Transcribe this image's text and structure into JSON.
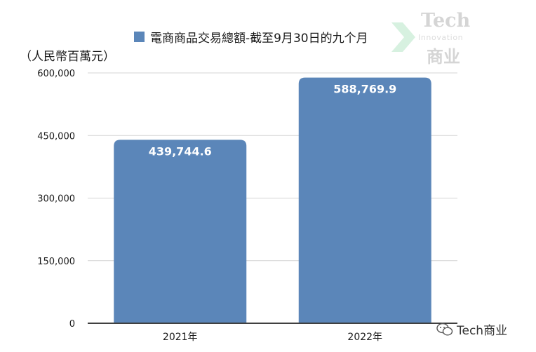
{
  "chart_data": {
    "type": "bar",
    "categories": [
      "2021年",
      "2022年"
    ],
    "series": [
      {
        "name": "電商商品交易總額-截至9月30日的九个月",
        "values": [
          439744.6,
          588769.9
        ],
        "value_labels": [
          "439,744.6",
          "588,769.9"
        ]
      }
    ],
    "ylabel": "（人民幣百萬元）",
    "ylim": [
      0,
      600000
    ],
    "yticks": [
      0,
      150000,
      300000,
      450000,
      600000
    ],
    "ytick_labels": [
      "0",
      "150,000",
      "300,000",
      "450,000",
      "600,000"
    ],
    "grid": true,
    "legend_position": "top",
    "bar_color": "#5b86b9",
    "data_label_color": "#ffffff"
  },
  "watermark": {
    "line1": "Tech",
    "line2": "Innovation",
    "line3": "商业",
    "icon": "green-chevron-icon"
  },
  "credit": {
    "icon": "wechat-icon",
    "text": "Tech商业"
  }
}
